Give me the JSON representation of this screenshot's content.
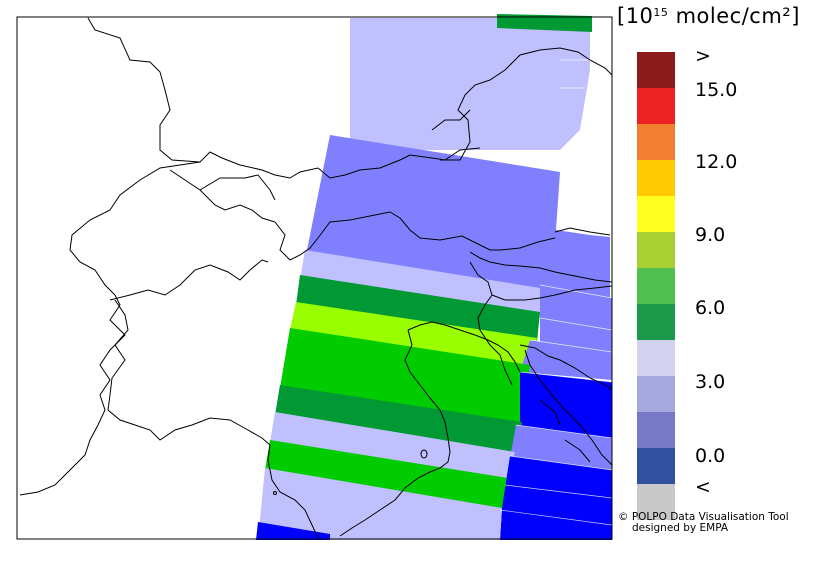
{
  "legend": {
    "unit_prefix": "[10",
    "unit_exponent": "15",
    "unit_suffix": " molec/cm²]",
    "labels": [
      ">",
      "15.0",
      "12.0",
      "9.0",
      "6.0",
      "3.0",
      "0.0",
      "<"
    ],
    "colors": [
      "#8b1a1a",
      "#ee2222",
      "#f08030",
      "#ffc800",
      "#ffff20",
      "#a8d030",
      "#50c050",
      "#1a9a4a",
      "#d2d2f0",
      "#a8a8e0",
      "#7878c8",
      "#3050a0",
      "#c8c8c8"
    ]
  },
  "credit": {
    "line1": "© POLPO Data Visualisation Tool",
    "line2": "designed by EMPA"
  },
  "data_colors": {
    "very_light_lavender": "#c0c0ff",
    "lavender": "#8080ff",
    "blue": "#0000ff",
    "dark_green": "#009933",
    "green": "#00cc00",
    "lime": "#99ff00"
  }
}
